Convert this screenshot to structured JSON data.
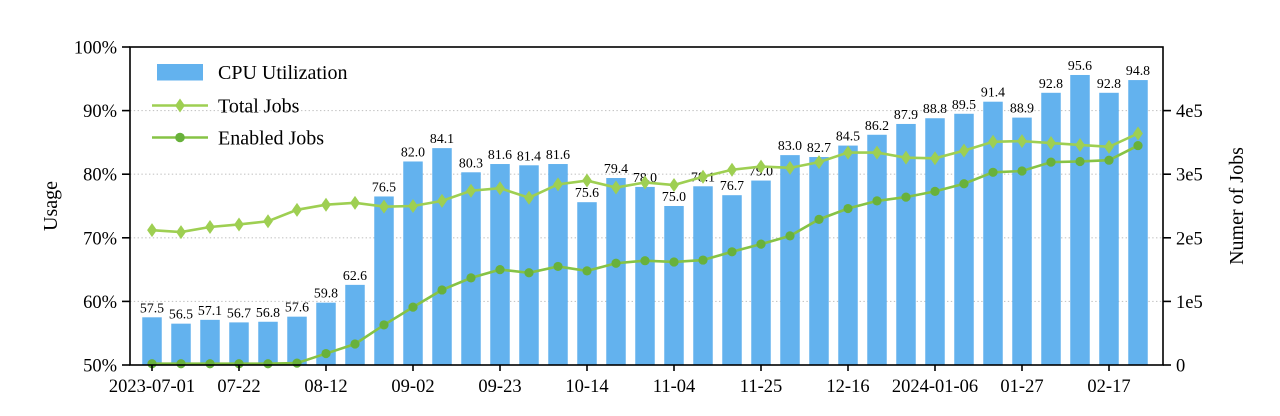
{
  "chart_data": {
    "type": "bar",
    "title": "",
    "n_points": 35,
    "x_tick_labels": [
      "2023-07-01",
      "07-22",
      "08-12",
      "09-02",
      "09-23",
      "10-14",
      "11-04",
      "11-25",
      "12-16",
      "2024-01-06",
      "01-27",
      "02-17"
    ],
    "x_tick_every": 3,
    "left_axis": {
      "label": "Usage",
      "tick_labels": [
        "50%",
        "60%",
        "70%",
        "80%",
        "90%",
        "100%"
      ],
      "tick_values": [
        50,
        60,
        70,
        80,
        90,
        100
      ],
      "range": [
        50,
        100
      ]
    },
    "right_axis": {
      "label": "Numer of Jobs",
      "tick_labels": [
        "0",
        "1e5",
        "2e5",
        "3e5",
        "4e5"
      ],
      "tick_values": [
        0,
        100000,
        200000,
        300000,
        400000
      ],
      "range": [
        0,
        500000
      ]
    },
    "grid": "horizontal dotted",
    "legend": {
      "position": "upper-left",
      "items": [
        "CPU Utilization",
        "Total Jobs",
        "Enabled Jobs"
      ]
    },
    "series": [
      {
        "name": "CPU Utilization",
        "kind": "bar",
        "axis": "left",
        "color": "#63B2EE",
        "values": [
          57.5,
          56.5,
          57.1,
          56.7,
          56.8,
          57.6,
          59.8,
          62.6,
          76.5,
          82.0,
          84.1,
          80.3,
          81.6,
          81.4,
          81.6,
          75.6,
          79.4,
          78.0,
          75.0,
          78.1,
          76.7,
          79.0,
          83.0,
          82.7,
          84.5,
          86.2,
          87.9,
          88.8,
          89.5,
          91.4,
          88.9,
          92.8,
          95.6,
          92.8,
          94.8
        ],
        "value_labels": [
          "57.5",
          "56.5",
          "57.1",
          "56.7",
          "56.8",
          "57.6",
          "59.8",
          "62.6",
          "76.5",
          "82.0",
          "84.1",
          "80.3",
          "81.6",
          "81.4",
          "81.6",
          "75.6",
          "79.4",
          "78.0",
          "75.0",
          "78.1",
          "76.7",
          "79.0",
          "83.0",
          "82.7",
          "84.5",
          "86.2",
          "87.9",
          "88.8",
          "89.5",
          "91.4",
          "88.9",
          "92.8",
          "95.6",
          "92.8",
          "94.8"
        ]
      },
      {
        "name": "Total Jobs",
        "kind": "line",
        "marker": "diamond",
        "axis": "right",
        "color": "#9ECF52",
        "marker_color": "#9ECF52",
        "values": [
          212000,
          209000,
          217000,
          221000,
          226000,
          244000,
          252000,
          255000,
          249000,
          250000,
          258000,
          274000,
          278000,
          263000,
          284000,
          290000,
          279000,
          287000,
          283000,
          296000,
          307000,
          312000,
          310000,
          319000,
          334000,
          334000,
          326000,
          325000,
          337000,
          351000,
          352000,
          349000,
          346000,
          343000,
          364000
        ]
      },
      {
        "name": "Enabled Jobs",
        "kind": "line",
        "marker": "circle",
        "axis": "right",
        "color": "#86C345",
        "marker_color": "#68B13B",
        "values": [
          2000,
          2000,
          2000,
          2000,
          2000,
          3000,
          18000,
          33000,
          63000,
          91000,
          118000,
          137000,
          150000,
          145000,
          155000,
          148000,
          160000,
          164000,
          162000,
          165000,
          178000,
          190000,
          203000,
          229000,
          246000,
          258000,
          264000,
          273000,
          285000,
          303000,
          305000,
          319000,
          320000,
          322000,
          345000
        ]
      }
    ]
  }
}
